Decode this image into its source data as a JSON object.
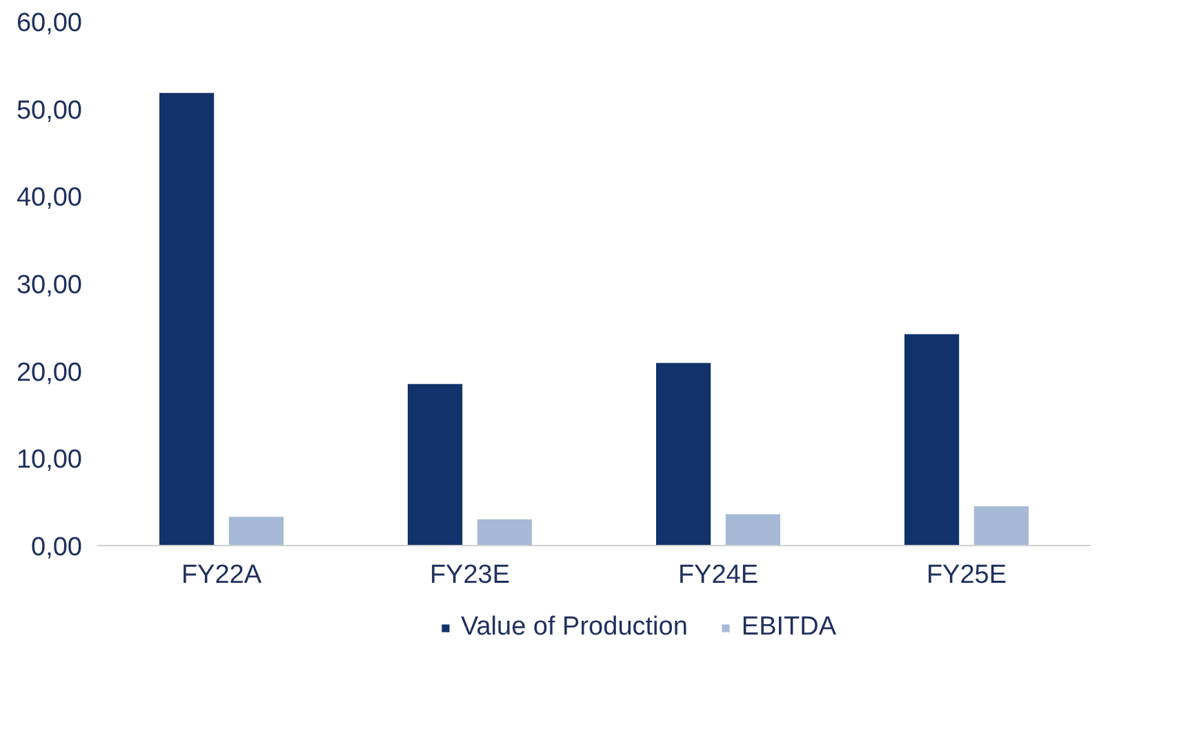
{
  "chart_data": {
    "type": "bar",
    "categories": [
      "FY22A",
      "FY23E",
      "FY24E",
      "FY25E"
    ],
    "series": [
      {
        "name": "Value of Production",
        "color": "#12326b",
        "values": [
          51.8,
          18.5,
          20.9,
          24.2
        ]
      },
      {
        "name": "EBITDA",
        "color": "#a6bad6",
        "values": [
          3.3,
          3.0,
          3.6,
          4.5
        ]
      }
    ],
    "ylim": [
      0,
      60
    ],
    "yticks": [
      {
        "value": 0,
        "label": "0,00"
      },
      {
        "value": 10,
        "label": "10,00"
      },
      {
        "value": 20,
        "label": "20,00"
      },
      {
        "value": 30,
        "label": "30,00"
      },
      {
        "value": 40,
        "label": "40,00"
      },
      {
        "value": 50,
        "label": "50,00"
      },
      {
        "value": 60,
        "label": "60,00"
      }
    ],
    "grid": false,
    "legend": "bottom"
  }
}
